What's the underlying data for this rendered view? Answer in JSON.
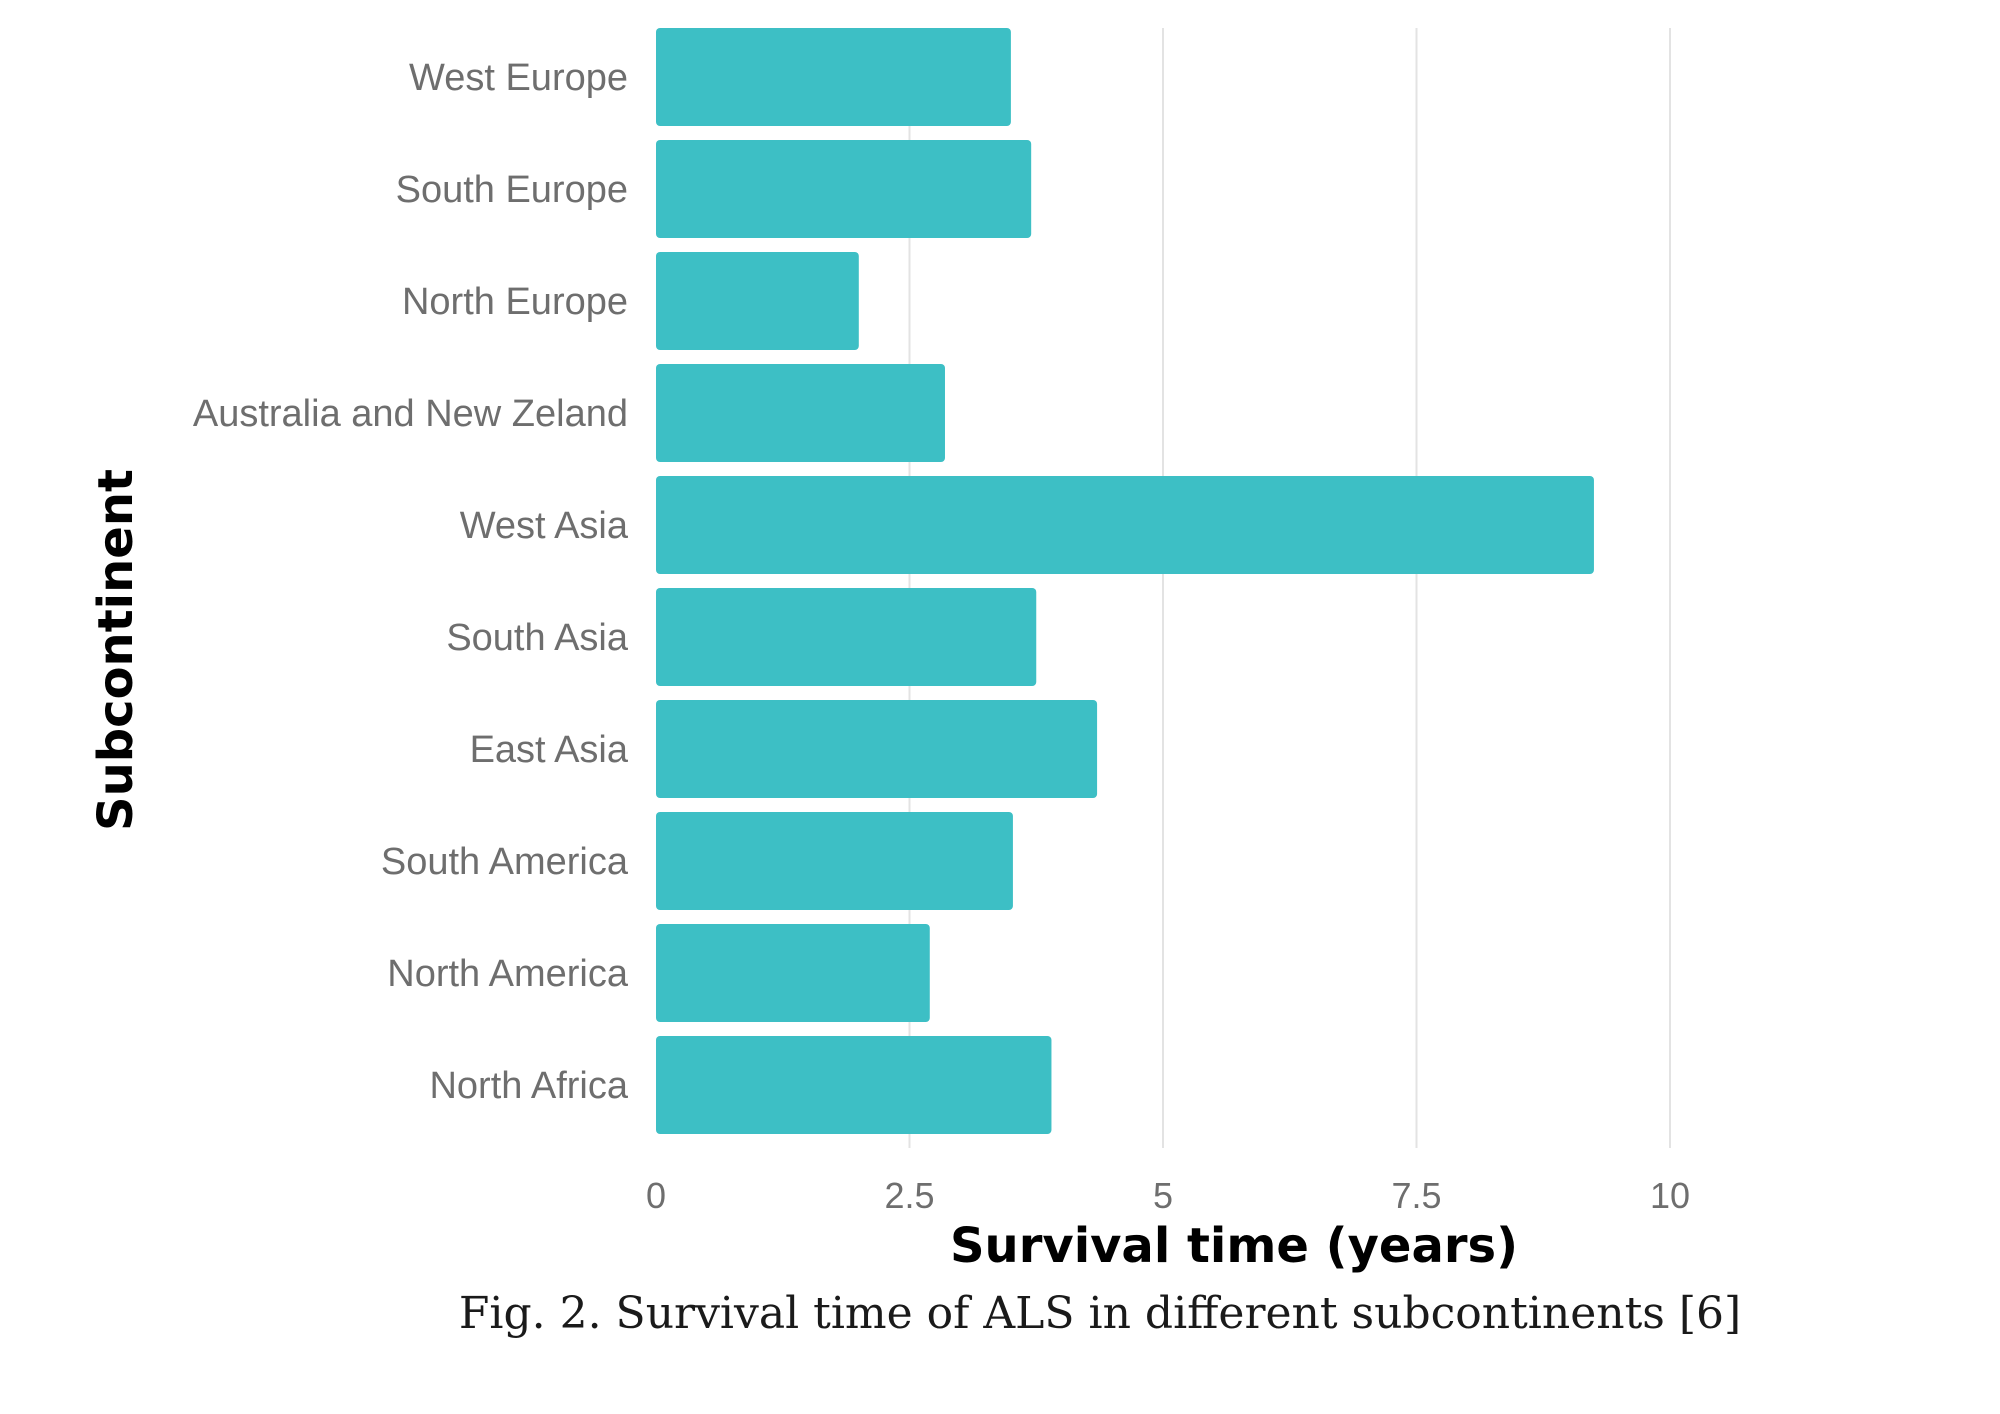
{
  "chart_data": {
    "type": "bar",
    "orientation": "horizontal",
    "categories": [
      "West Europe",
      "South Europe",
      "North Europe",
      "Australia and New Zeland",
      "West Asia",
      "South Asia",
      "East Asia",
      "South America",
      "North America",
      "North Africa"
    ],
    "values": [
      3.5,
      3.7,
      2.0,
      2.85,
      9.25,
      3.75,
      4.35,
      3.52,
      2.7,
      3.9
    ],
    "xlim": [
      0,
      10
    ],
    "xticks": [
      0,
      2.5,
      5,
      7.5,
      10
    ],
    "xtick_labels": [
      "0",
      "2.5",
      "5",
      "7.5",
      "10"
    ],
    "xlabel": "Survival time (years)",
    "ylabel": "Subcontinent",
    "grid": "vertical",
    "bar_color": "#3dbfc5"
  },
  "caption": "Fig. 2. Survival time of ALS in different subcontinents [6]"
}
